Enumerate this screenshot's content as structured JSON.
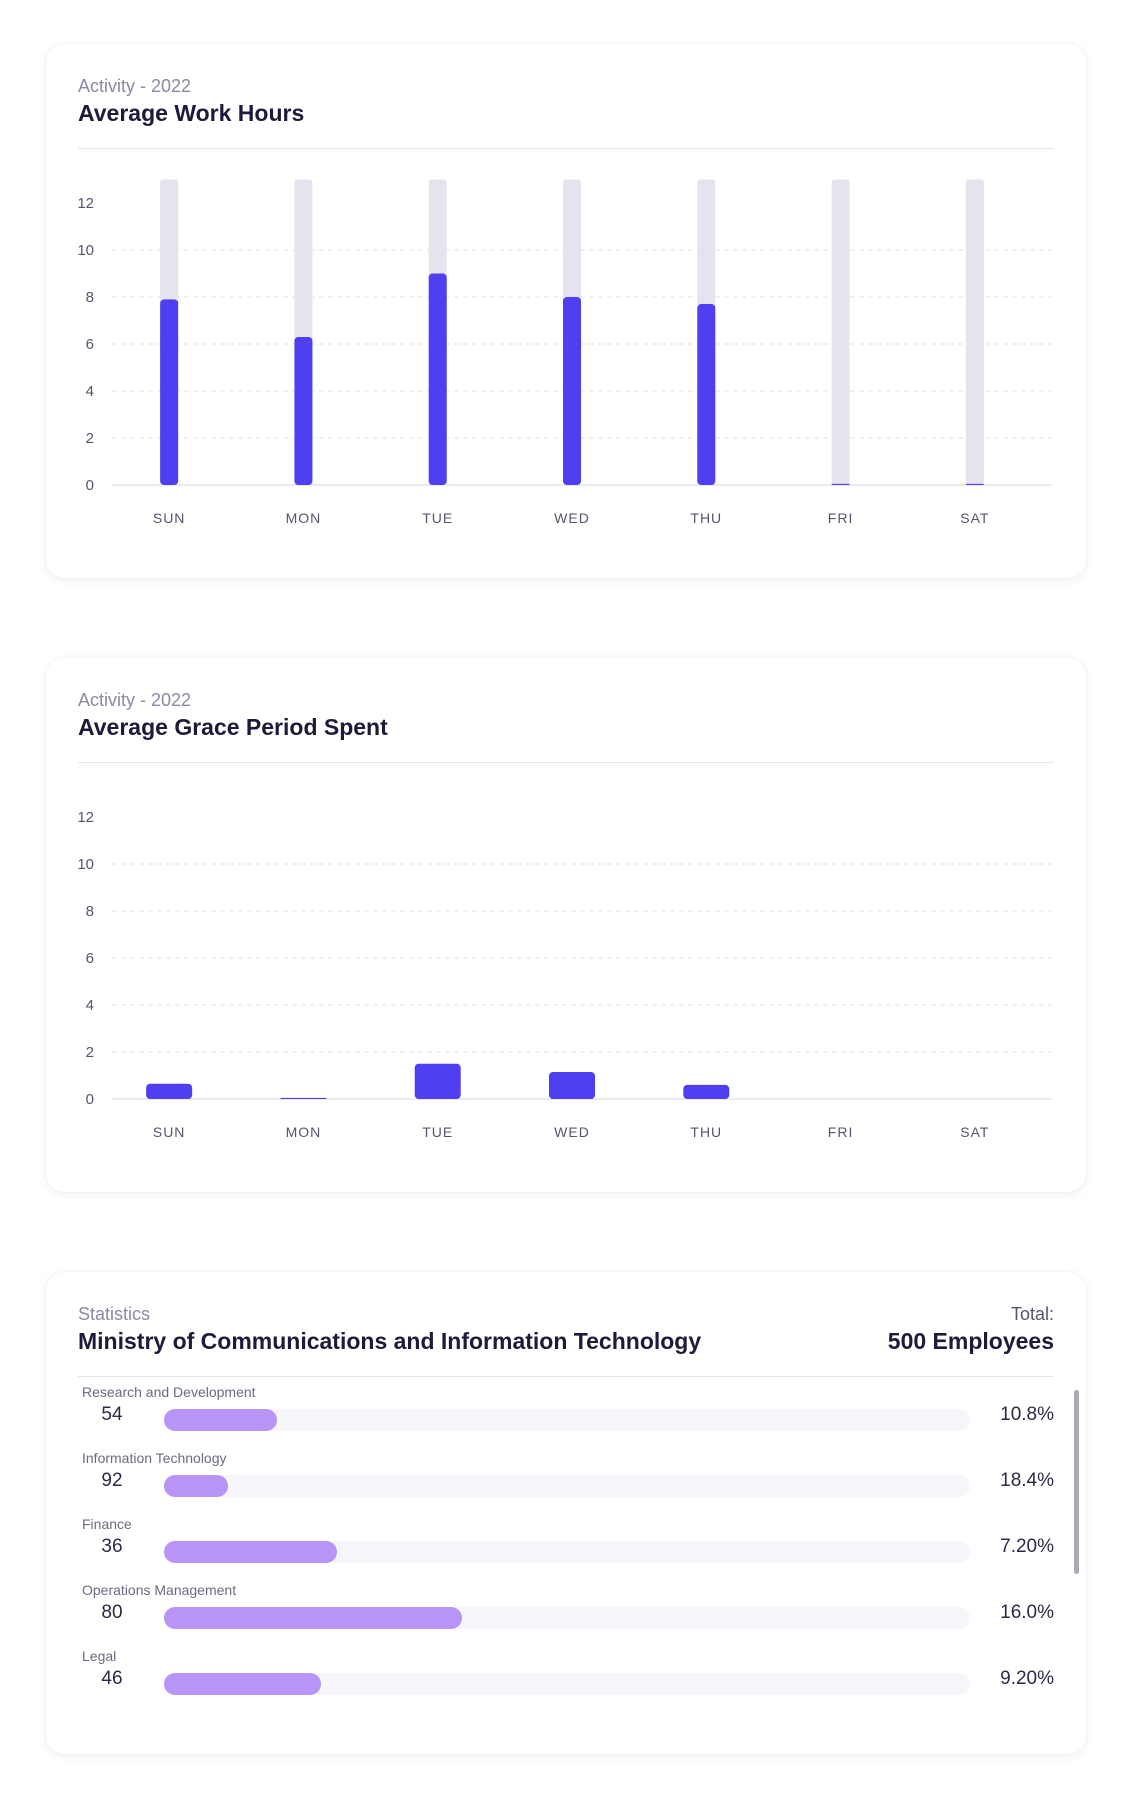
{
  "work_card": {
    "subtitle": "Activity - 2022",
    "title": "Average Work Hours"
  },
  "grace_card": {
    "subtitle": "Activity - 2022",
    "title": "Average Grace Period Spent"
  },
  "stats_card": {
    "subtitle": "Statistics",
    "title": "Ministry of Communications and Information Technology",
    "total_label": "Total:",
    "total_value": "500 Employees",
    "departments": [
      {
        "name": "Research and Development",
        "count": "54",
        "percent": "10.8%",
        "bar_fraction": 0.14
      },
      {
        "name": "Information Technology",
        "count": "92",
        "percent": "18.4%",
        "bar_fraction": 0.08
      },
      {
        "name": "Finance",
        "count": "36",
        "percent": "7.20%",
        "bar_fraction": 0.215
      },
      {
        "name": "Operations Management",
        "count": "80",
        "percent": "16.0%",
        "bar_fraction": 0.37
      },
      {
        "name": "Legal",
        "count": "46",
        "percent": "9.20%",
        "bar_fraction": 0.195
      }
    ]
  },
  "colors": {
    "bar": "#4f3ff0",
    "bar_background": "#e4e4ee",
    "department_fill": "#b794f6",
    "grid": "#e0e0ea"
  },
  "chart_data": [
    {
      "type": "bar",
      "title": "Average Work Hours",
      "categories": [
        "SUN",
        "MON",
        "TUE",
        "WED",
        "THU",
        "FRI",
        "SAT"
      ],
      "y_ticks": [
        "0",
        "2",
        "4",
        "6",
        "8",
        "10",
        "12"
      ],
      "ylim": [
        0,
        13
      ],
      "series": [
        {
          "values": [
            7.9,
            6.3,
            9.0,
            8.0,
            7.7,
            0.05,
            0.05
          ]
        }
      ],
      "background_values": [
        13,
        13,
        13,
        13,
        13,
        13,
        13
      ],
      "grid": "dashed horizontal"
    },
    {
      "type": "bar",
      "title": "Average Grace Period Spent",
      "categories": [
        "SUN",
        "MON",
        "TUE",
        "WED",
        "THU",
        "FRI",
        "SAT"
      ],
      "y_ticks": [
        "0",
        "2",
        "4",
        "6",
        "8",
        "10",
        "12"
      ],
      "ylim": [
        0,
        13
      ],
      "series": [
        {
          "values": [
            0.65,
            0.05,
            1.5,
            1.15,
            0.6,
            0,
            0
          ]
        }
      ],
      "grid": "dashed horizontal"
    }
  ]
}
